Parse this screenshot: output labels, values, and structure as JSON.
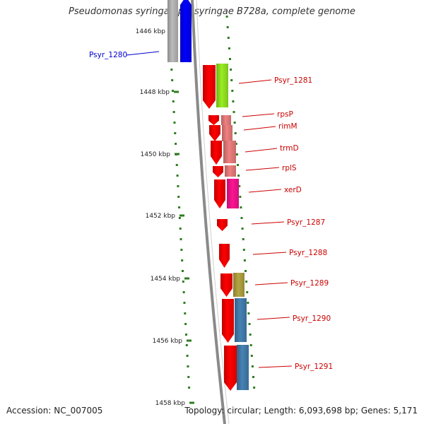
{
  "header": {
    "title": "Pseudomonas syringae pv. syringae B728a, complete genome"
  },
  "footer": {
    "accession_text": "Accession: NC_007005",
    "topology_text": "Topology: circular; Length: 6,093,698 bp; Genes: 5,171"
  },
  "colors": {
    "backbone": "#8a8a8a",
    "tick": "#2e7d1f",
    "feature_label": "#cc0000",
    "selected_label": "#0000cc"
  },
  "scale": {
    "unit": "kbp",
    "ticks": [
      {
        "label": "1446 kbp"
      },
      {
        "label": "1448 kbp"
      },
      {
        "label": "1450 kbp"
      },
      {
        "label": "1452 kbp"
      },
      {
        "label": "1454 kbp"
      },
      {
        "label": "1456 kbp"
      },
      {
        "label": "1458 kbp"
      }
    ]
  },
  "genes": [
    {
      "id": "Psyr_1280",
      "label": "Psyr_1280",
      "strand": "forward",
      "color": "#0000ff",
      "cog_color": "#bbbbbb",
      "selected": true
    },
    {
      "id": "Psyr_1281",
      "label": "Psyr_1281",
      "strand": "reverse",
      "color": "#ff0000",
      "cog_color": "#99ee22",
      "selected": false
    },
    {
      "id": "rpsP",
      "label": "rpsP",
      "strand": "reverse",
      "color": "#ff0000",
      "cog_color": "#f08080",
      "selected": false
    },
    {
      "id": "rimM",
      "label": "rimM",
      "strand": "reverse",
      "color": "#ff0000",
      "cog_color": "#f08080",
      "selected": false
    },
    {
      "id": "trmD",
      "label": "trmD",
      "strand": "reverse",
      "color": "#ff0000",
      "cog_color": "#f08080",
      "selected": false
    },
    {
      "id": "rplS",
      "label": "rplS",
      "strand": "reverse",
      "color": "#ff0000",
      "cog_color": "#f08080",
      "selected": false
    },
    {
      "id": "xerD",
      "label": "xerD",
      "strand": "reverse",
      "color": "#ff0000",
      "cog_color": "#ff1493",
      "selected": false
    },
    {
      "id": "Psyr_1287",
      "label": "Psyr_1287",
      "strand": "reverse",
      "color": "#ff0000",
      "cog_color": "",
      "selected": false
    },
    {
      "id": "Psyr_1288",
      "label": "Psyr_1288",
      "strand": "reverse",
      "color": "#ff0000",
      "cog_color": "",
      "selected": false
    },
    {
      "id": "Psyr_1289",
      "label": "Psyr_1289",
      "strand": "reverse",
      "color": "#ff0000",
      "cog_color": "#b5a642",
      "selected": false
    },
    {
      "id": "Psyr_1290",
      "label": "Psyr_1290",
      "strand": "reverse",
      "color": "#ff0000",
      "cog_color": "#4682b4",
      "selected": false
    },
    {
      "id": "Psyr_1291",
      "label": "Psyr_1291",
      "strand": "reverse",
      "color": "#ff0000",
      "cog_color": "#4682b4",
      "selected": false
    }
  ]
}
